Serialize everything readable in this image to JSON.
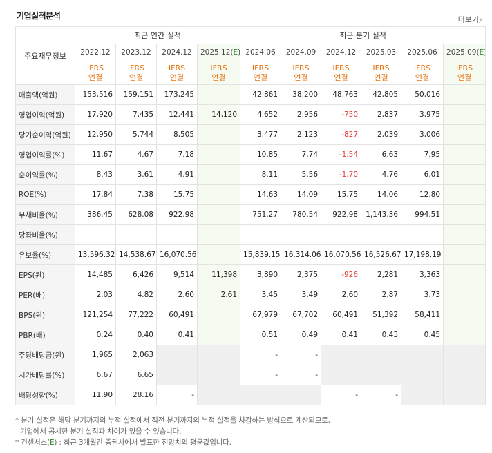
{
  "title": "기업실적분석",
  "more_label": "더보기",
  "more_arrow": "〉",
  "header": {
    "corner": "주요재무정보",
    "annual_label": "최근 연간 실적",
    "quarter_label": "최근 분기 실적",
    "unit_line1": "IFRS",
    "unit_line2": "연결",
    "annual_periods": [
      "2022.12",
      "2023.12",
      "2024.12",
      "2025.12"
    ],
    "quarter_periods": [
      "2024.06",
      "2024.09",
      "2024.12",
      "2025.03",
      "2025.06",
      "2025.09"
    ],
    "est_mark": "E"
  },
  "rows": [
    {
      "label": "매출액(억원)",
      "annual": [
        "153,516",
        "159,151",
        "173,245",
        ""
      ],
      "quarter": [
        "42,861",
        "38,200",
        "48,763",
        "42,805",
        "50,016",
        ""
      ]
    },
    {
      "label": "영업이익(억원)",
      "annual": [
        "17,920",
        "7,435",
        "12,441",
        "14,120"
      ],
      "quarter": [
        "4,652",
        "2,956",
        "-750",
        "2,837",
        "3,975",
        ""
      ]
    },
    {
      "label": "당기순이익(억원)",
      "annual": [
        "12,950",
        "5,744",
        "8,505",
        ""
      ],
      "quarter": [
        "3,477",
        "2,123",
        "-827",
        "2,039",
        "3,006",
        ""
      ]
    },
    {
      "label": "영업이익률(%)",
      "annual": [
        "11.67",
        "4.67",
        "7.18",
        ""
      ],
      "quarter": [
        "10.85",
        "7.74",
        "-1.54",
        "6.63",
        "7.95",
        ""
      ]
    },
    {
      "label": "순이익률(%)",
      "annual": [
        "8.43",
        "3.61",
        "4.91",
        ""
      ],
      "quarter": [
        "8.11",
        "5.56",
        "-1.70",
        "4.76",
        "6.01",
        ""
      ]
    },
    {
      "label": "ROE(%)",
      "annual": [
        "17.84",
        "7.38",
        "15.75",
        ""
      ],
      "quarter": [
        "14.63",
        "14.09",
        "15.75",
        "14.06",
        "12.80",
        ""
      ]
    },
    {
      "label": "부채비율(%)",
      "annual": [
        "386.45",
        "628.08",
        "922.98",
        ""
      ],
      "quarter": [
        "751.27",
        "780.54",
        "922.98",
        "1,143.36",
        "994.51",
        ""
      ]
    },
    {
      "label": "당좌비율(%)",
      "annual": [
        "",
        "",
        "",
        ""
      ],
      "quarter": [
        "",
        "",
        "",
        "",
        "",
        ""
      ]
    },
    {
      "label": "유보율(%)",
      "annual": [
        "13,596.32",
        "14,538.67",
        "16,070.56",
        ""
      ],
      "quarter": [
        "15,839.15",
        "16,314.06",
        "16,070.56",
        "16,526.67",
        "17,198.19",
        ""
      ]
    },
    {
      "label": "EPS(원)",
      "annual": [
        "14,485",
        "6,426",
        "9,514",
        "11,398"
      ],
      "quarter": [
        "3,890",
        "2,375",
        "-926",
        "2,281",
        "3,363",
        ""
      ]
    },
    {
      "label": "PER(배)",
      "annual": [
        "2.03",
        "4.82",
        "2.60",
        "2.61"
      ],
      "quarter": [
        "3.45",
        "3.49",
        "2.60",
        "2.87",
        "3.73",
        ""
      ]
    },
    {
      "label": "BPS(원)",
      "annual": [
        "121,254",
        "77,222",
        "60,491",
        ""
      ],
      "quarter": [
        "67,979",
        "67,702",
        "60,491",
        "51,392",
        "58,411",
        ""
      ]
    },
    {
      "label": "PBR(배)",
      "annual": [
        "0.24",
        "0.40",
        "0.41",
        ""
      ],
      "quarter": [
        "0.51",
        "0.49",
        "0.41",
        "0.43",
        "0.45",
        ""
      ]
    },
    {
      "label": "주당배당금(원)",
      "annual": [
        "1,965",
        "2,063",
        "",
        ""
      ],
      "quarter": [
        "-",
        "-",
        "",
        "",
        "",
        ""
      ]
    },
    {
      "label": "시가배당률(%)",
      "annual": [
        "6.67",
        "6.65",
        "",
        ""
      ],
      "quarter": [
        "-",
        "-",
        "",
        "",
        "",
        ""
      ]
    },
    {
      "label": "배당성향(%)",
      "annual": [
        "11.90",
        "28.16",
        "-",
        ""
      ],
      "quarter": [
        "",
        "",
        "-",
        "-",
        "",
        ""
      ]
    }
  ],
  "na_cells": {
    "13": {
      "annual": [
        2,
        3
      ],
      "quarter": [
        2,
        3,
        4,
        5
      ]
    },
    "14": {
      "annual": [
        2,
        3
      ],
      "quarter": [
        2,
        3,
        4,
        5
      ]
    },
    "15": {
      "annual": [
        3
      ],
      "quarter": [
        0,
        1,
        4,
        5
      ]
    }
  },
  "notes": {
    "n1_a": "분기 실적은 해당 분기까지의 누적 실적에서 직전 분기까지의 누적 실적을 차감하는 방식으로 계산되므로,",
    "n1_b": "기업에서 공시한 분기 실적과 차이가 있을 수 있습니다.",
    "n2_a": "컨센서스(",
    "n2_e": "E",
    "n2_b": ") : 최근 3개월간 증권사에서 발표한 전망치의 평균값입니다."
  },
  "colors": {
    "negative": "#e53935",
    "unit_orange": "#e8700a",
    "estimate_green": "#2e8b2e"
  }
}
